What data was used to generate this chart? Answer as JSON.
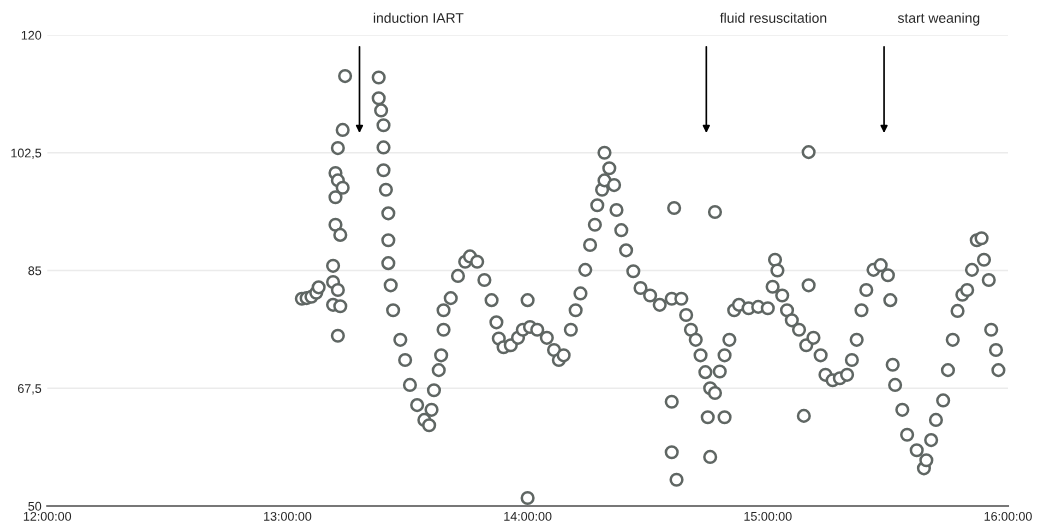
{
  "chart_data": {
    "type": "scatter",
    "marker": "circle",
    "grid": "y",
    "xlim": [
      12,
      16
    ],
    "ylim": [
      50,
      120
    ],
    "xticks": [
      {
        "value": 12,
        "label": "12:00:00"
      },
      {
        "value": 13,
        "label": "13:00:00"
      },
      {
        "value": 14,
        "label": "14:00:00"
      },
      {
        "value": 15,
        "label": "15:00:00"
      },
      {
        "value": 16,
        "label": "16:00:00"
      }
    ],
    "yticks": [
      50,
      {
        "value": 67.5,
        "label": "67,5"
      },
      85,
      {
        "value": 102.5,
        "label": "102,5"
      },
      120
    ],
    "annotations": [
      "induction IART",
      "fluid resuscitation",
      "start weaning"
    ],
    "series": [
      {
        "color": "#5f6663",
        "x": [
          13.06,
          13.08,
          13.1,
          13.12,
          13.13,
          13.24,
          13.23,
          13.21,
          13.2,
          13.21,
          13.23,
          13.2,
          13.2,
          13.22,
          13.19,
          13.19,
          13.21,
          13.19,
          13.22,
          13.21,
          13.38,
          13.38,
          13.39,
          13.4,
          13.4,
          13.4,
          13.41,
          13.42,
          13.42,
          13.42,
          13.43,
          13.44,
          13.47,
          13.49,
          13.51,
          13.54,
          13.57,
          13.59,
          13.6,
          13.61,
          13.63,
          13.64,
          13.65,
          13.65,
          13.68,
          13.71,
          13.74,
          13.76,
          13.79,
          13.82,
          13.85,
          13.87,
          13.88,
          13.9,
          13.93,
          13.96,
          13.98,
          14.01,
          14.04,
          14.08,
          14.11,
          14.13,
          14.15,
          14.0,
          14.0,
          14.18,
          14.2,
          14.22,
          14.24,
          14.26,
          14.28,
          14.29,
          14.31,
          14.32,
          14.32,
          14.34,
          14.36,
          14.37,
          14.39,
          14.41,
          14.44,
          14.47,
          14.51,
          14.55,
          14.6,
          14.64,
          14.66,
          14.68,
          14.7,
          14.72,
          14.74,
          14.76,
          14.78,
          14.8,
          14.82,
          14.84,
          14.86,
          14.88,
          14.92,
          14.96,
          15.0,
          15.02,
          15.03,
          15.04,
          15.06,
          15.08,
          15.1,
          15.13,
          15.16,
          15.19,
          15.22,
          15.24,
          15.27,
          15.3,
          15.33,
          15.35,
          15.37,
          15.39,
          15.41,
          15.44,
          15.47,
          15.5,
          15.51,
          15.52,
          15.53,
          15.56,
          15.58,
          15.62,
          15.65,
          15.66,
          15.68,
          15.7,
          15.73,
          15.75,
          15.77,
          15.79,
          15.81,
          15.83,
          15.85,
          15.87,
          15.89,
          15.9,
          15.92,
          15.93,
          15.95,
          15.96,
          14.61,
          14.78,
          14.6,
          14.6,
          14.62,
          14.76,
          15.17,
          15.17,
          15.15,
          14.75,
          14.82
        ],
        "values": [
          80.8,
          80.9,
          81.1,
          81.7,
          82.5,
          113.9,
          105.9,
          103.2,
          99.5,
          98.4,
          97.3,
          95.9,
          91.8,
          90.3,
          85.7,
          83.3,
          82.1,
          79.9,
          79.7,
          75.3,
          113.7,
          110.6,
          108.8,
          106.6,
          103.3,
          99.9,
          97.0,
          93.5,
          89.5,
          86.1,
          82.8,
          79.1,
          74.7,
          71.7,
          68.0,
          65.0,
          62.8,
          62.0,
          64.3,
          67.2,
          70.2,
          72.4,
          76.2,
          79.1,
          80.9,
          84.2,
          86.3,
          87.1,
          86.3,
          83.6,
          80.6,
          77.3,
          74.9,
          73.6,
          73.9,
          75.0,
          76.2,
          76.6,
          76.2,
          75.0,
          73.2,
          71.7,
          72.4,
          80.6,
          51.2,
          76.2,
          79.1,
          81.6,
          85.1,
          88.8,
          91.8,
          94.7,
          97.0,
          98.4,
          102.5,
          100.2,
          97.7,
          94.0,
          91.0,
          88.0,
          84.9,
          82.4,
          81.3,
          79.9,
          80.8,
          80.8,
          78.4,
          76.2,
          74.7,
          72.4,
          69.9,
          67.5,
          66.8,
          70.0,
          72.4,
          74.7,
          79.1,
          79.9,
          79.4,
          79.6,
          79.4,
          82.6,
          86.6,
          85.0,
          81.3,
          79.1,
          77.6,
          76.2,
          73.9,
          75.0,
          72.4,
          69.5,
          68.7,
          69.0,
          69.5,
          71.7,
          74.7,
          79.1,
          82.1,
          85.1,
          85.8,
          84.3,
          80.6,
          71.0,
          68.0,
          64.3,
          60.6,
          58.3,
          55.6,
          56.8,
          59.8,
          62.8,
          65.7,
          70.2,
          74.7,
          79.0,
          81.4,
          82.1,
          85.1,
          89.5,
          89.8,
          86.6,
          83.6,
          76.2,
          73.2,
          70.2,
          94.3,
          93.7,
          65.5,
          58.0,
          53.9,
          57.3,
          102.6,
          82.8,
          63.4,
          63.2,
          63.2
        ]
      }
    ]
  }
}
